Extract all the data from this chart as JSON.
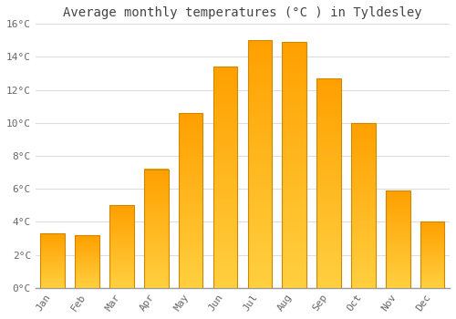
{
  "months": [
    "Jan",
    "Feb",
    "Mar",
    "Apr",
    "May",
    "Jun",
    "Jul",
    "Aug",
    "Sep",
    "Oct",
    "Nov",
    "Dec"
  ],
  "values": [
    3.3,
    3.2,
    5.0,
    7.2,
    10.6,
    13.4,
    15.0,
    14.9,
    12.7,
    10.0,
    5.9,
    4.0
  ],
  "bar_color_light": "#FFD040",
  "bar_color_dark": "#FFA000",
  "bar_edge_color": "#CC8800",
  "title": "Average monthly temperatures (°C ) in Tyldesley",
  "ylim": [
    0,
    16
  ],
  "yticks": [
    0,
    2,
    4,
    6,
    8,
    10,
    12,
    14,
    16
  ],
  "ytick_labels": [
    "0°C",
    "2°C",
    "4°C",
    "6°C",
    "8°C",
    "10°C",
    "12°C",
    "14°C",
    "16°C"
  ],
  "background_color": "#FFFFFF",
  "plot_background": "#FFFFFF",
  "grid_color": "#DDDDDD",
  "title_fontsize": 10,
  "tick_fontsize": 8,
  "title_color": "#444444",
  "tick_color": "#666666",
  "bar_width": 0.7
}
